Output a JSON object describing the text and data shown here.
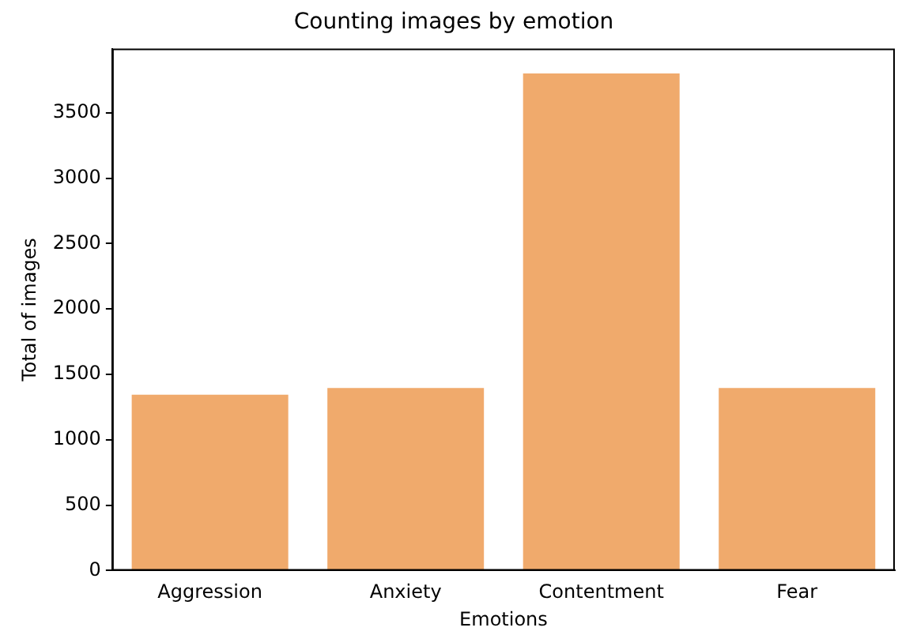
{
  "chart_data": {
    "type": "bar",
    "title": "Counting images by emotion",
    "xlabel": "Emotions",
    "ylabel": "Total of images",
    "categories": [
      "Aggression",
      "Anxiety",
      "Contentment",
      "Fear"
    ],
    "values": [
      1345,
      1395,
      3800,
      1395
    ],
    "color": "#f0aa6c",
    "ylim": [
      0,
      3990
    ],
    "yticks": [
      0,
      500,
      1000,
      1500,
      2000,
      2500,
      3000,
      3500
    ],
    "grid": false,
    "legend": false
  }
}
